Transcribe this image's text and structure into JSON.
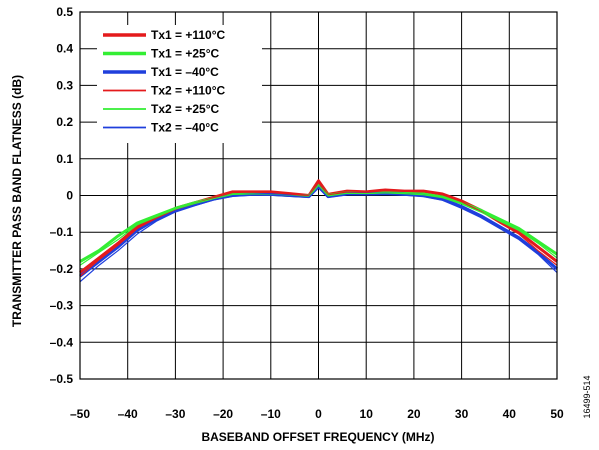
{
  "chart_data": {
    "type": "line",
    "xlabel": "BASEBAND OFFSET FREQUENCY (MHz)",
    "ylabel": "TRANSMITTER PASS BAND FLATNESS (dB)",
    "xlim": [
      -50,
      50
    ],
    "ylim": [
      -0.5,
      0.5
    ],
    "x_ticks": [
      -50,
      -40,
      -30,
      -20,
      -10,
      0,
      10,
      20,
      30,
      40,
      50
    ],
    "y_ticks": [
      -0.5,
      -0.4,
      -0.3,
      -0.2,
      -0.1,
      0,
      0.1,
      0.2,
      0.3,
      0.4,
      0.5
    ],
    "x_tick_labels": [
      "–50",
      "–40",
      "–30",
      "–20",
      "–10",
      "0",
      "10",
      "20",
      "30",
      "40",
      "50"
    ],
    "y_tick_labels": [
      "–0.5",
      "–0.4",
      "–0.3",
      "–0.2",
      "–0.1",
      "0",
      "0.1",
      "0.2",
      "0.3",
      "0.4",
      "0.5"
    ],
    "grid": true,
    "legend_position": "top-left",
    "figure_id": "16499-514",
    "x": [
      -50,
      -46,
      -42,
      -38,
      -34,
      -30,
      -26,
      -22,
      -18,
      -14,
      -10,
      -6,
      -2,
      0,
      2,
      6,
      10,
      14,
      18,
      22,
      26,
      30,
      34,
      38,
      42,
      46,
      50
    ],
    "series": [
      {
        "name": "Tx1 = +110°C",
        "color": "#e41a1c",
        "width": 3,
        "values": [
          -0.21,
          -0.17,
          -0.13,
          -0.085,
          -0.06,
          -0.035,
          -0.02,
          -0.005,
          0.01,
          0.01,
          0.01,
          0.005,
          0.0,
          0.04,
          0.003,
          0.012,
          0.01,
          0.015,
          0.012,
          0.012,
          0.004,
          -0.015,
          -0.04,
          -0.07,
          -0.1,
          -0.14,
          -0.18
        ]
      },
      {
        "name": "Tx1 = +25°C",
        "color": "#33ee33",
        "width": 3,
        "values": [
          -0.18,
          -0.15,
          -0.11,
          -0.075,
          -0.055,
          -0.035,
          -0.02,
          -0.008,
          0.005,
          0.005,
          0.003,
          0.0,
          -0.002,
          0.03,
          0.0,
          0.008,
          0.006,
          0.008,
          0.006,
          0.004,
          -0.004,
          -0.02,
          -0.04,
          -0.065,
          -0.09,
          -0.125,
          -0.16
        ]
      },
      {
        "name": "Tx1 = –40°C",
        "color": "#1f3fdc",
        "width": 3,
        "values": [
          -0.22,
          -0.18,
          -0.14,
          -0.095,
          -0.065,
          -0.04,
          -0.025,
          -0.01,
          0.0,
          0.003,
          0.003,
          0.0,
          -0.003,
          0.025,
          -0.003,
          0.004,
          0.004,
          0.005,
          0.003,
          0.0,
          -0.01,
          -0.03,
          -0.055,
          -0.085,
          -0.115,
          -0.155,
          -0.2
        ]
      },
      {
        "name": "Tx2 = +110°C",
        "color": "#e41a1c",
        "width": 1.2,
        "values": [
          -0.22,
          -0.175,
          -0.135,
          -0.09,
          -0.062,
          -0.038,
          -0.022,
          -0.006,
          0.008,
          0.009,
          0.008,
          0.004,
          -0.001,
          0.035,
          0.001,
          0.01,
          0.009,
          0.013,
          0.011,
          0.01,
          0.002,
          -0.017,
          -0.043,
          -0.075,
          -0.105,
          -0.15,
          -0.19
        ]
      },
      {
        "name": "Tx2 = +25°C",
        "color": "#33ee33",
        "width": 1.2,
        "values": [
          -0.19,
          -0.155,
          -0.12,
          -0.08,
          -0.058,
          -0.037,
          -0.022,
          -0.009,
          0.003,
          0.004,
          0.002,
          -0.001,
          -0.003,
          0.028,
          -0.001,
          0.006,
          0.005,
          0.007,
          0.005,
          0.002,
          -0.006,
          -0.023,
          -0.045,
          -0.07,
          -0.095,
          -0.13,
          -0.17
        ]
      },
      {
        "name": "Tx2 = –40°C",
        "color": "#1f3fdc",
        "width": 1.2,
        "values": [
          -0.235,
          -0.19,
          -0.15,
          -0.105,
          -0.07,
          -0.045,
          -0.028,
          -0.012,
          -0.002,
          0.001,
          0.001,
          -0.002,
          -0.005,
          0.02,
          -0.005,
          0.002,
          0.002,
          0.003,
          0.001,
          -0.003,
          -0.013,
          -0.035,
          -0.06,
          -0.09,
          -0.12,
          -0.16,
          -0.21
        ]
      }
    ]
  }
}
